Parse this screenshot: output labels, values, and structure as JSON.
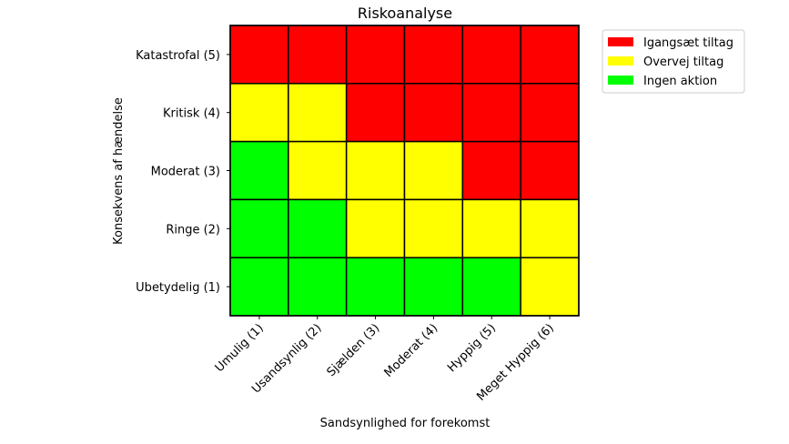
{
  "chart_data": {
    "type": "heatmap",
    "title": "Riskoanalyse",
    "xlabel": "Sandsynlighed for forekomst",
    "ylabel": "Konsekvens af hændelse",
    "x_categories": [
      "Umulig (1)",
      "Usandsynlig (2)",
      "Sjælden (3)",
      "Moderat (4)",
      "Hyppig (5)",
      "Meget Hyppig (6)"
    ],
    "y_categories": [
      "Katastrofal (5)",
      "Kritisk (4)",
      "Moderat (3)",
      "Ringe (2)",
      "Ubetydelig (1)"
    ],
    "cells": [
      [
        "Igangsæt tiltag",
        "Igangsæt tiltag",
        "Igangsæt tiltag",
        "Igangsæt tiltag",
        "Igangsæt tiltag",
        "Igangsæt tiltag"
      ],
      [
        "Overvej tiltag",
        "Overvej tiltag",
        "Igangsæt tiltag",
        "Igangsæt tiltag",
        "Igangsæt tiltag",
        "Igangsæt tiltag"
      ],
      [
        "Ingen aktion",
        "Overvej tiltag",
        "Overvej tiltag",
        "Overvej tiltag",
        "Igangsæt tiltag",
        "Igangsæt tiltag"
      ],
      [
        "Ingen aktion",
        "Ingen aktion",
        "Overvej tiltag",
        "Overvej tiltag",
        "Overvej tiltag",
        "Overvej tiltag"
      ],
      [
        "Ingen aktion",
        "Ingen aktion",
        "Ingen aktion",
        "Ingen aktion",
        "Ingen aktion",
        "Overvej tiltag"
      ]
    ],
    "legend": [
      {
        "label": "Igangsæt tiltag",
        "color": "#ff0000"
      },
      {
        "label": "Overvej tiltag",
        "color": "#ffff00"
      },
      {
        "label": "Ingen aktion",
        "color": "#00ff00"
      }
    ],
    "legend_position": "upper-right-outside",
    "grid": false
  }
}
